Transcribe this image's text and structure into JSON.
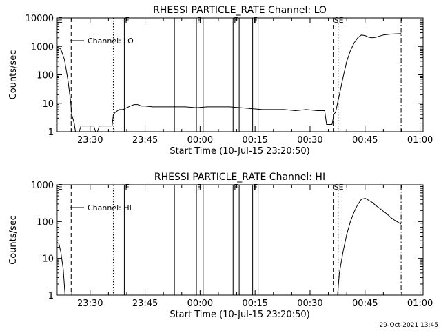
{
  "footer": {
    "timestamp": "29-Oct-2021 13:45"
  },
  "chart_data": [
    {
      "type": "line",
      "title": "RHESSI PARTICLE_RATE Channel: LO",
      "xlabel": "Start Time (10-Jul-15 23:20:50)",
      "ylabel": "Counts/sec",
      "yscale": "log",
      "ylim": [
        1,
        10000
      ],
      "xlim": [
        "23:20:50",
        "01:00:50"
      ],
      "xticks": [
        "23:30",
        "23:45",
        "00:00",
        "00:15",
        "00:30",
        "00:45",
        "01:00"
      ],
      "yticks": [
        "1",
        "10",
        "100",
        "1000",
        "10000"
      ],
      "legend": {
        "label": "Channel: LO",
        "placement": "top-left"
      },
      "markers": [
        {
          "time": "23:21",
          "label": "E",
          "style": "solid"
        },
        {
          "time": "23:24:50",
          "label": "",
          "style": "dashed"
        },
        {
          "time": "23:36:20",
          "label": "",
          "style": "dotted"
        },
        {
          "time": "23:39:20",
          "label": "F",
          "style": "solid"
        },
        {
          "time": "23:53",
          "label": "",
          "style": "solid"
        },
        {
          "time": "23:59",
          "label": "F",
          "style": "solid"
        },
        {
          "time": "00:00:50",
          "label": "",
          "style": "solid"
        },
        {
          "time": "00:09",
          "label": "F",
          "style": "solid"
        },
        {
          "time": "00:10:40",
          "label": "",
          "style": "solid"
        },
        {
          "time": "00:14:20",
          "label": "F",
          "style": "solid"
        },
        {
          "time": "00:15:50",
          "label": "",
          "style": "solid"
        },
        {
          "time": "00:36:20",
          "label": "SE",
          "style": "dashed"
        },
        {
          "time": "00:37:40",
          "label": "",
          "style": "dotted"
        },
        {
          "time": "00:54:50",
          "label": "",
          "style": "dashdot"
        }
      ],
      "series": [
        {
          "name": "Channel: LO",
          "points": [
            [
              "23:20:50",
              1000
            ],
            [
              "23:22",
              800
            ],
            [
              "23:23",
              350
            ],
            [
              "23:24",
              60
            ],
            [
              "23:24:40",
              12
            ],
            [
              "23:25",
              4
            ],
            [
              "23:25:40",
              2
            ],
            [
              "23:26",
              1
            ],
            [
              "23:27",
              1
            ],
            [
              "23:27:30",
              1.6
            ],
            [
              "23:28",
              1.6
            ],
            [
              "23:29",
              1.6
            ],
            [
              "23:30",
              1.6
            ],
            [
              "23:31",
              1.6
            ],
            [
              "23:31:30",
              1
            ],
            [
              "23:32",
              1
            ],
            [
              "23:32:30",
              1.6
            ],
            [
              "23:33",
              1.6
            ],
            [
              "23:34",
              1.6
            ],
            [
              "23:35",
              1.6
            ],
            [
              "23:36",
              1.6
            ],
            [
              "23:36:20",
              4
            ],
            [
              "23:37",
              5
            ],
            [
              "23:38",
              6
            ],
            [
              "23:39",
              6
            ],
            [
              "23:40",
              7
            ],
            [
              "23:41",
              8
            ],
            [
              "23:42",
              9
            ],
            [
              "23:43",
              9
            ],
            [
              "23:44",
              8
            ],
            [
              "23:45",
              8
            ],
            [
              "23:47",
              7.5
            ],
            [
              "23:50",
              7.5
            ],
            [
              "23:53",
              7.5
            ],
            [
              "23:56",
              7.5
            ],
            [
              "23:59",
              7
            ],
            [
              "00:02",
              7.5
            ],
            [
              "00:05",
              7.5
            ],
            [
              "00:08",
              7.5
            ],
            [
              "00:11",
              7
            ],
            [
              "00:14",
              6.5
            ],
            [
              "00:17",
              6
            ],
            [
              "00:20",
              6
            ],
            [
              "00:23",
              6
            ],
            [
              "00:26",
              5.5
            ],
            [
              "00:29",
              6
            ],
            [
              "00:32",
              5.5
            ],
            [
              "00:34",
              5.5
            ],
            [
              "00:34:30",
              1.8
            ],
            [
              "00:35",
              1.8
            ],
            [
              "00:36",
              1.8
            ],
            [
              "00:36:30",
              4
            ],
            [
              "00:37",
              5
            ],
            [
              "00:38",
              20
            ],
            [
              "00:39",
              80
            ],
            [
              "00:40",
              300
            ],
            [
              "00:41",
              700
            ],
            [
              "00:42",
              1300
            ],
            [
              "00:43",
              2000
            ],
            [
              "00:44",
              2500
            ],
            [
              "00:45",
              2400
            ],
            [
              "00:46",
              2100
            ],
            [
              "00:47",
              2000
            ],
            [
              "00:48",
              2100
            ],
            [
              "00:49",
              2300
            ],
            [
              "00:50",
              2500
            ],
            [
              "00:52",
              2700
            ],
            [
              "00:54:50",
              2800
            ]
          ]
        }
      ]
    },
    {
      "type": "line",
      "title": "RHESSI PARTICLE_RATE Channel: HI",
      "xlabel": "Start Time (10-Jul-15 23:20:50)",
      "ylabel": "Counts/sec",
      "yscale": "log",
      "ylim": [
        1,
        1000
      ],
      "xlim": [
        "23:20:50",
        "01:00:50"
      ],
      "xticks": [
        "23:30",
        "23:45",
        "00:00",
        "00:15",
        "00:30",
        "00:45",
        "01:00"
      ],
      "yticks": [
        "1",
        "10",
        "100",
        "1000"
      ],
      "legend": {
        "label": "Channel: HI",
        "placement": "top-left"
      },
      "markers": [
        {
          "time": "23:21",
          "label": "E",
          "style": "solid"
        },
        {
          "time": "23:24:50",
          "label": "",
          "style": "dashed"
        },
        {
          "time": "23:36:20",
          "label": "",
          "style": "dotted"
        },
        {
          "time": "23:39:20",
          "label": "F",
          "style": "solid"
        },
        {
          "time": "23:53",
          "label": "",
          "style": "solid"
        },
        {
          "time": "23:59",
          "label": "F",
          "style": "solid"
        },
        {
          "time": "00:00:50",
          "label": "",
          "style": "solid"
        },
        {
          "time": "00:09",
          "label": "F",
          "style": "solid"
        },
        {
          "time": "00:10:40",
          "label": "",
          "style": "solid"
        },
        {
          "time": "00:14:20",
          "label": "F",
          "style": "solid"
        },
        {
          "time": "00:15:50",
          "label": "",
          "style": "solid"
        },
        {
          "time": "00:36:20",
          "label": "SE",
          "style": "dashed"
        },
        {
          "time": "00:37:40",
          "label": "",
          "style": "dotted"
        },
        {
          "time": "00:54:50",
          "label": "",
          "style": "dashdot"
        }
      ],
      "series": [
        {
          "name": "Channel: HI",
          "points": [
            [
              "23:20:50",
              28
            ],
            [
              "23:21:30",
              25
            ],
            [
              "23:22",
              15
            ],
            [
              "23:22:40",
              5
            ],
            [
              "23:23:10",
              1
            ],
            [
              "00:37:30",
              1
            ],
            [
              "00:38",
              4
            ],
            [
              "00:39",
              15
            ],
            [
              "00:40",
              45
            ],
            [
              "00:41",
              100
            ],
            [
              "00:42",
              180
            ],
            [
              "00:43",
              290
            ],
            [
              "00:44",
              400
            ],
            [
              "00:45",
              430
            ],
            [
              "00:46",
              380
            ],
            [
              "00:47",
              330
            ],
            [
              "00:48",
              270
            ],
            [
              "00:49",
              230
            ],
            [
              "00:50",
              190
            ],
            [
              "00:51",
              160
            ],
            [
              "00:52",
              130
            ],
            [
              "00:53",
              110
            ],
            [
              "00:54:50",
              85
            ]
          ]
        }
      ]
    }
  ]
}
